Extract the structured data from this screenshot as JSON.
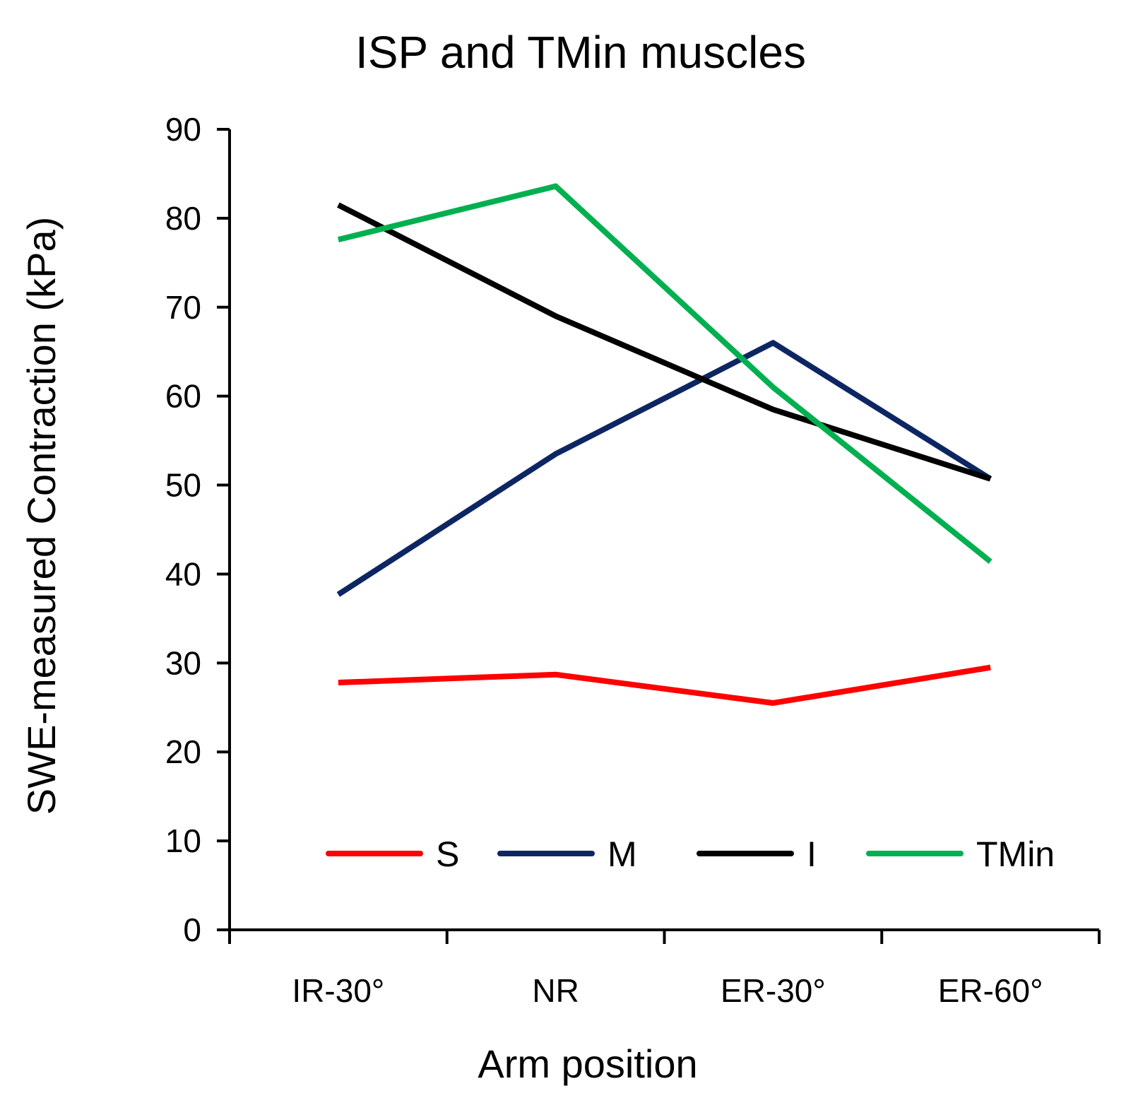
{
  "chart_data": {
    "type": "line",
    "title": "ISP and TMin muscles",
    "xlabel": "Arm position",
    "ylabel": "SWE-measured Contraction (kPa)",
    "categories": [
      "IR-30°",
      "NR",
      "ER-30°",
      "ER-60°"
    ],
    "ylim": [
      0,
      90
    ],
    "yticks": [
      0,
      10,
      20,
      30,
      40,
      50,
      60,
      70,
      80,
      90
    ],
    "grid": false,
    "legend_position": "bottom-inside",
    "series": [
      {
        "name": "S",
        "color": "#ff0000",
        "values": [
          27.8,
          28.7,
          25.5,
          29.5
        ]
      },
      {
        "name": "M",
        "color": "#0d2663",
        "values": [
          37.7,
          53.5,
          66.0,
          50.7
        ]
      },
      {
        "name": "I",
        "color": "#000000",
        "values": [
          81.5,
          69.0,
          58.5,
          50.7
        ]
      },
      {
        "name": "TMin",
        "color": "#00b050",
        "values": [
          77.6,
          83.6,
          61.0,
          41.4
        ]
      }
    ]
  }
}
